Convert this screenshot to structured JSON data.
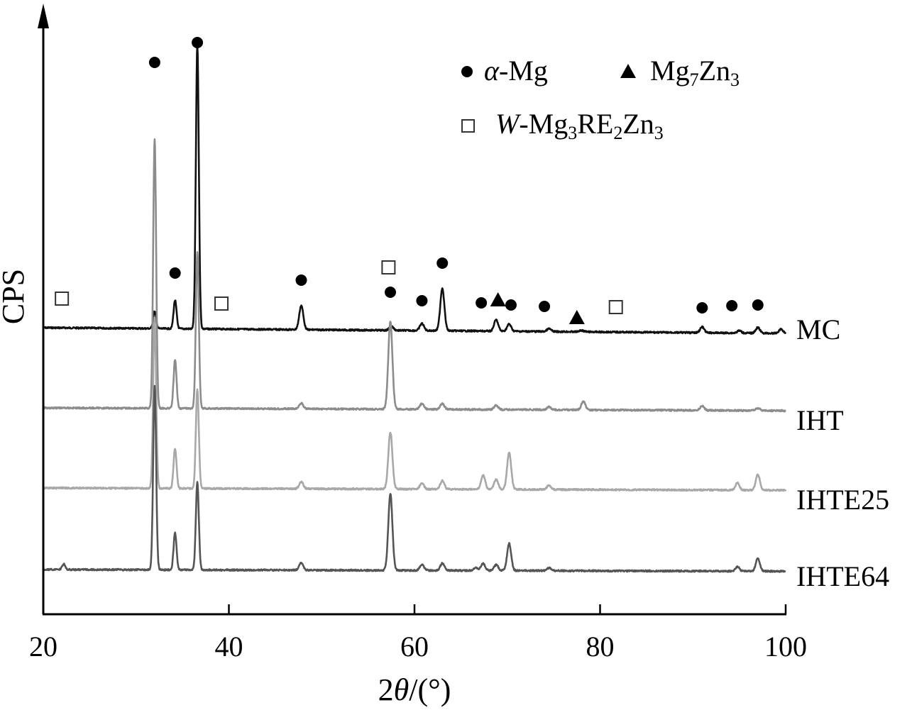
{
  "chart_data": {
    "type": "line",
    "xlabel": "2θ/(°)",
    "xlabel_parts": [
      "2",
      "θ",
      "/(°)"
    ],
    "ylabel": "CPS",
    "xlim": [
      20,
      100
    ],
    "x_ticks": [
      "20",
      "40",
      "60",
      "80",
      "100"
    ],
    "grid": false,
    "legend": {
      "placement": "top-right",
      "entries": [
        {
          "marker": "filled-circle",
          "label": "α-Mg",
          "parts": [
            "α",
            "-Mg"
          ]
        },
        {
          "marker": "filled-triangle",
          "label": "Mg7Zn3",
          "parts": [
            "Mg",
            "7",
            "Zn",
            "3"
          ]
        },
        {
          "marker": "open-square",
          "label": "W-Mg3RE2Zn3",
          "parts": [
            "W",
            "-Mg",
            "3",
            "RE",
            "2",
            "Zn",
            "3"
          ]
        }
      ]
    },
    "series": [
      {
        "name": "MC",
        "color": "#111111",
        "offset": 0,
        "peaks": [
          [
            32.0,
            0.6
          ],
          [
            34.2,
            1.0
          ],
          [
            36.6,
            10.0
          ],
          [
            47.8,
            0.85
          ],
          [
            57.5,
            0.15
          ],
          [
            60.8,
            0.25
          ],
          [
            63.0,
            1.5
          ],
          [
            68.8,
            0.4
          ],
          [
            70.2,
            0.25
          ],
          [
            74.5,
            0.1
          ],
          [
            78.0,
            0.05
          ],
          [
            91.0,
            0.2
          ],
          [
            95.0,
            0.08
          ],
          [
            97.0,
            0.2
          ],
          [
            99.5,
            0.15
          ]
        ]
      },
      {
        "name": "IHT",
        "color": "#8c8c8c",
        "offset": 1,
        "peaks": [
          [
            32.0,
            9.5
          ],
          [
            34.2,
            1.7
          ],
          [
            36.6,
            5.5
          ],
          [
            47.8,
            0.2
          ],
          [
            57.4,
            3.1
          ],
          [
            60.8,
            0.2
          ],
          [
            63.0,
            0.2
          ],
          [
            68.8,
            0.15
          ],
          [
            74.5,
            0.1
          ],
          [
            78.2,
            0.3
          ],
          [
            91.0,
            0.15
          ],
          [
            97.0,
            0.08
          ]
        ]
      },
      {
        "name": "IHTE25",
        "color": "#a8a8a8",
        "offset": 2,
        "peaks": [
          [
            32.0,
            6.0
          ],
          [
            34.2,
            1.4
          ],
          [
            36.6,
            3.5
          ],
          [
            47.8,
            0.25
          ],
          [
            57.4,
            2.0
          ],
          [
            60.8,
            0.2
          ],
          [
            63.0,
            0.3
          ],
          [
            67.4,
            0.5
          ],
          [
            68.8,
            0.35
          ],
          [
            70.2,
            1.3
          ],
          [
            74.5,
            0.15
          ],
          [
            94.8,
            0.25
          ],
          [
            97.0,
            0.55
          ]
        ]
      },
      {
        "name": "IHTE64",
        "color": "#555555",
        "offset": 3,
        "peaks": [
          [
            22.2,
            0.2
          ],
          [
            32.0,
            6.5
          ],
          [
            34.2,
            1.3
          ],
          [
            36.6,
            3.1
          ],
          [
            47.8,
            0.25
          ],
          [
            57.4,
            2.7
          ],
          [
            60.8,
            0.2
          ],
          [
            63.0,
            0.25
          ],
          [
            66.6,
            0.1
          ],
          [
            67.4,
            0.25
          ],
          [
            68.8,
            0.2
          ],
          [
            70.2,
            0.95
          ],
          [
            74.5,
            0.1
          ],
          [
            94.8,
            0.15
          ],
          [
            97.0,
            0.45
          ]
        ]
      }
    ],
    "phase_markers": [
      {
        "phase": "α-Mg",
        "marker": "filled-circle",
        "x": [
          32.0,
          34.2,
          36.6,
          47.8,
          57.4,
          60.8,
          63.0,
          67.2,
          70.4,
          74.0,
          91.0,
          94.2,
          97.0
        ]
      },
      {
        "phase": "Mg7Zn3",
        "marker": "filled-triangle",
        "x": [
          69.0,
          77.5
        ]
      },
      {
        "phase": "W-Mg3RE2Zn3",
        "marker": "open-square",
        "x": [
          22.0,
          39.2,
          57.2,
          81.7
        ]
      }
    ]
  }
}
